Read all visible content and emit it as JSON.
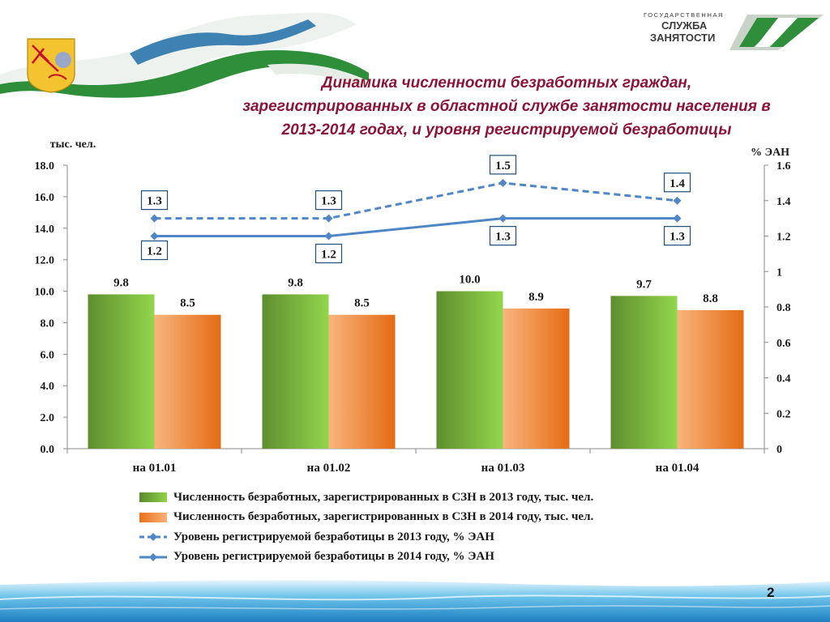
{
  "title": {
    "line1": "Динамика численности безработных граждан,",
    "line2": "зарегистрированных в областной службе занятости населения в",
    "line3": "2013-2014 годах, и уровня регистрируемой безработицы"
  },
  "logo": {
    "line1": "ГОСУДАРСТВЕННАЯ",
    "line2": "СЛУЖБА",
    "line3": "ЗАНЯТОСТИ"
  },
  "page_number": "2",
  "colors": {
    "bar_2013": "#7cc242",
    "bar_2014": "#f0822a",
    "line": "#4f86c6",
    "title": "#8b1538"
  },
  "chart_data": {
    "type": "bar",
    "categories": [
      "на 01.01",
      "на 01.02",
      "на 01.03",
      "на 01.04"
    ],
    "ylabel_left": "тыс. чел.",
    "ylabel_right": "% ЭАН",
    "ylim_left": [
      0,
      18
    ],
    "ylim_right": [
      0,
      1.6
    ],
    "yticks_left": [
      "0.0",
      "2.0",
      "4.0",
      "6.0",
      "8.0",
      "10.0",
      "12.0",
      "14.0",
      "16.0",
      "18.0"
    ],
    "yticks_right": [
      "0",
      "0.2",
      "0.4",
      "0.6",
      "0.8",
      "1",
      "1.2",
      "1.4",
      "1.6"
    ],
    "grid": false,
    "legend_position": "bottom",
    "series": [
      {
        "name": "Численность безработных, зарегистрированных в СЗН в 2013 году, тыс. чел.",
        "kind": "bar",
        "axis": "left",
        "values": [
          9.8,
          9.8,
          10.0,
          9.7
        ],
        "labels": [
          "9.8",
          "9.8",
          "10.0",
          "9.7"
        ]
      },
      {
        "name": "Численность безработных, зарегистрированных в СЗН в 2014 году, тыс. чел.",
        "kind": "bar",
        "axis": "left",
        "values": [
          8.5,
          8.5,
          8.9,
          8.8
        ],
        "labels": [
          "8.5",
          "8.5",
          "8.9",
          "8.8"
        ]
      },
      {
        "name": "Уровень регистрируемой безработицы в 2013 году, % ЭАН",
        "kind": "line",
        "style": "dashed",
        "axis": "right",
        "values": [
          1.3,
          1.3,
          1.5,
          1.4
        ],
        "labels": [
          "1.3",
          "1.3",
          "1.5",
          "1.4"
        ]
      },
      {
        "name": "Уровень регистрируемой безработицы в 2014 году, % ЭАН",
        "kind": "line",
        "style": "solid",
        "axis": "right",
        "values": [
          1.2,
          1.2,
          1.3,
          1.3
        ],
        "labels": [
          "1.2",
          "1.2",
          "1.3",
          "1.3"
        ]
      }
    ]
  }
}
